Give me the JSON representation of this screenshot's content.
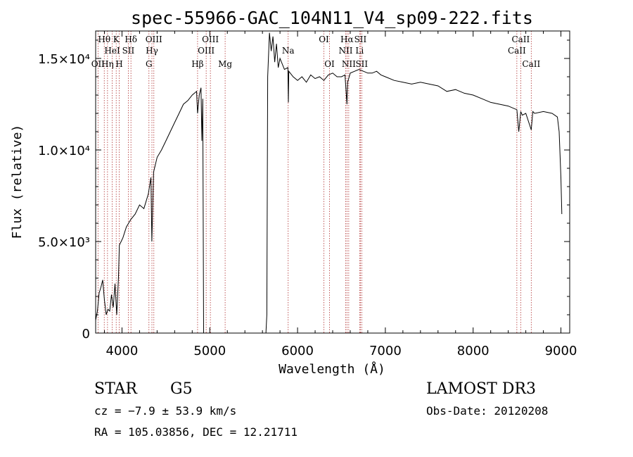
{
  "chart_data": {
    "type": "line",
    "title": "spec-55966-GAC_104N11_V4_sp09-222.fits",
    "xlabel": "Wavelength (Å)",
    "ylabel": "Flux (relative)",
    "xlim": [
      3700,
      9100
    ],
    "ylim": [
      0,
      16500
    ],
    "xticks": [
      4000,
      5000,
      6000,
      7000,
      8000,
      9000
    ],
    "xtick_labels": [
      "4000",
      "5000",
      "6000",
      "7000",
      "8000",
      "9000"
    ],
    "yticks": [
      0,
      5000,
      10000,
      15000
    ],
    "ytick_labels": [
      "0",
      "5.0×10³",
      "1.0×10⁴",
      "1.5×10⁴"
    ],
    "grid": false,
    "series": [
      {
        "x": [
          3700,
          3720,
          3740,
          3760,
          3780,
          3800,
          3820,
          3840,
          3860,
          3880,
          3900,
          3920,
          3940,
          3960,
          3970,
          3990,
          4010,
          4050,
          4100,
          4150,
          4200,
          4250,
          4300,
          4330,
          4340,
          4360,
          4400,
          4450,
          4500,
          4550,
          4600,
          4650,
          4700,
          4750,
          4800,
          4850,
          4861,
          4880,
          4900,
          4910,
          4920,
          4930,
          5640,
          5650,
          5660,
          5680,
          5700,
          5720,
          5740,
          5760,
          5780,
          5800,
          5850,
          5890,
          5895,
          5900,
          5950,
          6000,
          6050,
          6100,
          6150,
          6200,
          6250,
          6300,
          6350,
          6400,
          6450,
          6500,
          6540,
          6563,
          6570,
          6600,
          6650,
          6700,
          6750,
          6800,
          6850,
          6900,
          6950,
          7000,
          7100,
          7200,
          7300,
          7400,
          7500,
          7600,
          7700,
          7800,
          7900,
          8000,
          8100,
          8200,
          8300,
          8400,
          8498,
          8520,
          8542,
          8560,
          8600,
          8662,
          8680,
          8700,
          8800,
          8900,
          8960,
          8980,
          9000,
          9010
        ],
        "values": [
          700,
          1200,
          2200,
          2500,
          2900,
          1800,
          1000,
          1300,
          1200,
          2100,
          1400,
          2700,
          1000,
          3100,
          4800,
          5000,
          5200,
          5800,
          6200,
          6500,
          7000,
          6800,
          7600,
          8500,
          5000,
          8800,
          9600,
          10000,
          10500,
          11000,
          11500,
          12000,
          12500,
          12700,
          13000,
          13200,
          12000,
          13000,
          13400,
          10500,
          12800,
          0,
          0,
          1000,
          14000,
          16400,
          15400,
          16200,
          14800,
          15800,
          14500,
          15000,
          14400,
          14500,
          12600,
          14300,
          14000,
          13800,
          14000,
          13700,
          14100,
          13900,
          14000,
          13800,
          14100,
          14200,
          14000,
          14000,
          14100,
          12500,
          13700,
          14200,
          14300,
          14400,
          14300,
          14200,
          14200,
          14300,
          14100,
          14000,
          13800,
          13700,
          13600,
          13700,
          13600,
          13500,
          13200,
          13300,
          13100,
          13000,
          12800,
          12600,
          12500,
          12400,
          12200,
          11000,
          12100,
          11900,
          12000,
          11100,
          12100,
          12000,
          12100,
          12000,
          11800,
          11000,
          8500,
          6500
        ]
      }
    ],
    "line_markers": [
      {
        "wl": 3798,
        "label": "Hθ",
        "row": 0
      },
      {
        "wl": 3727,
        "label": "OII",
        "row": 2
      },
      {
        "wl": 3835,
        "label": "Hη",
        "row": 2
      },
      {
        "wl": 3889,
        "label": "HeI",
        "row": 1
      },
      {
        "wl": 3934,
        "label": "K",
        "row": 0
      },
      {
        "wl": 3968,
        "label": "H",
        "row": 2
      },
      {
        "wl": 4072,
        "label": "SII",
        "row": 1
      },
      {
        "wl": 4102,
        "label": "Hδ",
        "row": 0
      },
      {
        "wl": 4307,
        "label": "G",
        "row": 2
      },
      {
        "wl": 4341,
        "label": "Hγ",
        "row": 1
      },
      {
        "wl": 4363,
        "label": "OIII",
        "row": 0
      },
      {
        "wl": 4861,
        "label": "Hβ",
        "row": 2
      },
      {
        "wl": 4959,
        "label": "OIII",
        "row": 1
      },
      {
        "wl": 5007,
        "label": "OIII",
        "row": 0
      },
      {
        "wl": 5175,
        "label": "Mg",
        "row": 2
      },
      {
        "wl": 5893,
        "label": "Na",
        "row": 1
      },
      {
        "wl": 6300,
        "label": "OI",
        "row": 0
      },
      {
        "wl": 6364,
        "label": "OI",
        "row": 2
      },
      {
        "wl": 6548,
        "label": "NII",
        "row": 1
      },
      {
        "wl": 6563,
        "label": "Hα",
        "row": 0
      },
      {
        "wl": 6583,
        "label": "NII",
        "row": 2
      },
      {
        "wl": 6707,
        "label": "Li",
        "row": 1
      },
      {
        "wl": 6716,
        "label": "SII",
        "row": 0
      },
      {
        "wl": 6731,
        "label": "SII",
        "row": 2
      },
      {
        "wl": 8498,
        "label": "CaII",
        "row": 1
      },
      {
        "wl": 8542,
        "label": "CaII",
        "row": 0
      },
      {
        "wl": 8662,
        "label": "CaII",
        "row": 2
      }
    ]
  },
  "info": {
    "class": "STAR",
    "subclass": "G5",
    "survey": "LAMOST DR3",
    "cz": "cz = −7.9 ± 53.9 km/s",
    "obs_date": "Obs-Date: 20120208",
    "coords": "RA = 105.03856, DEC =  12.21711"
  },
  "colors": {
    "marker": "#b03030",
    "spectrum": "#000000",
    "axis": "#000000"
  }
}
